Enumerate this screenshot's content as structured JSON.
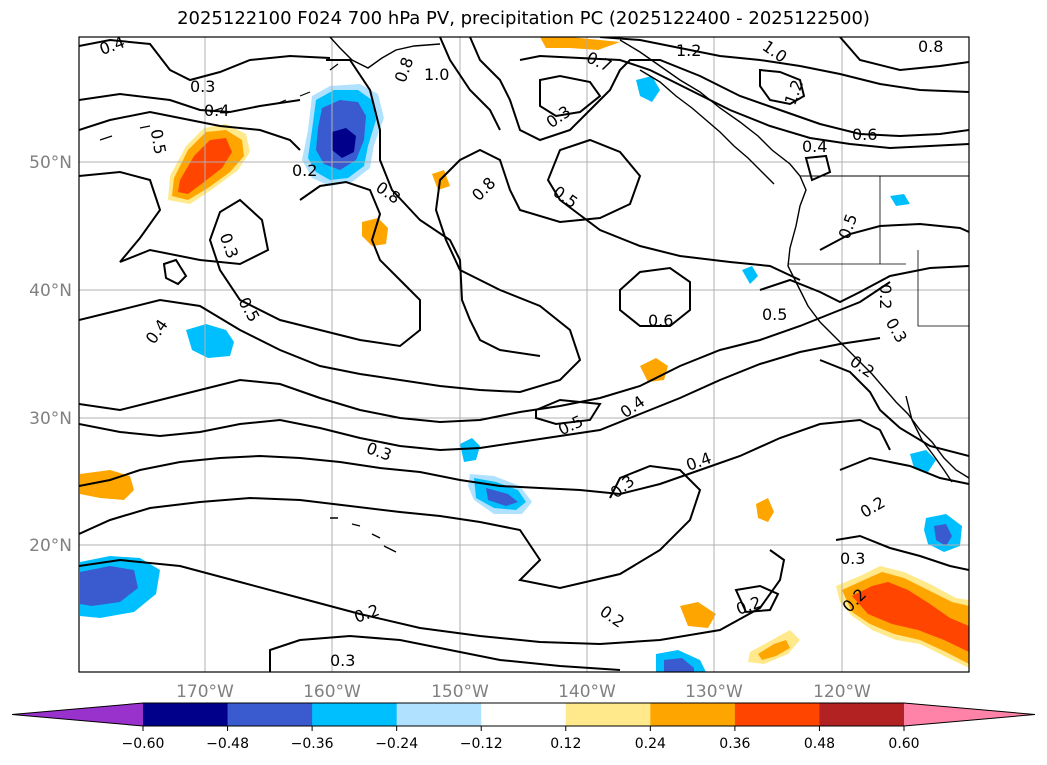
{
  "title": "2025122100 F024 700 hPa PV, precipitation PC (2025122400 - 2025122500)",
  "map": {
    "lat_ticks": [
      "50°N",
      "40°N",
      "30°N",
      "20°N"
    ],
    "lon_ticks": [
      "170°W",
      "160°W",
      "150°W",
      "140°W",
      "130°W",
      "120°W"
    ]
  },
  "contour_labels": [
    "0.4",
    "0.3",
    "0.4",
    "0.5",
    "0.2",
    "0.3",
    "0.5",
    "0.4",
    "0.8",
    "1.0",
    "0.8",
    "0.7",
    "0.3",
    "0.8",
    "0.5",
    "1.2",
    "1.0",
    "1.2",
    "0.8",
    "0.6",
    "0.4",
    "0.6",
    "0.5",
    "0.5",
    "0.2",
    "0.3",
    "0.2",
    "0.5",
    "0.4",
    "0.3",
    "0.3",
    "0.4",
    "0.2",
    "0.3",
    "0.2",
    "0.2",
    "0.2",
    "0.3",
    "0.2"
  ],
  "colorbar": {
    "colors": [
      "#9932cc",
      "#00008b",
      "#3a5bd0",
      "#00bfff",
      "#b0e2ff",
      "#ffffff",
      "#ffe98a",
      "#ffa500",
      "#ff4500",
      "#b22222",
      "#ff82a9"
    ],
    "labels": [
      "−0.60",
      "−0.48",
      "−0.36",
      "−0.24",
      "−0.12",
      "0.12",
      "0.24",
      "0.36",
      "0.48",
      "0.60"
    ]
  }
}
